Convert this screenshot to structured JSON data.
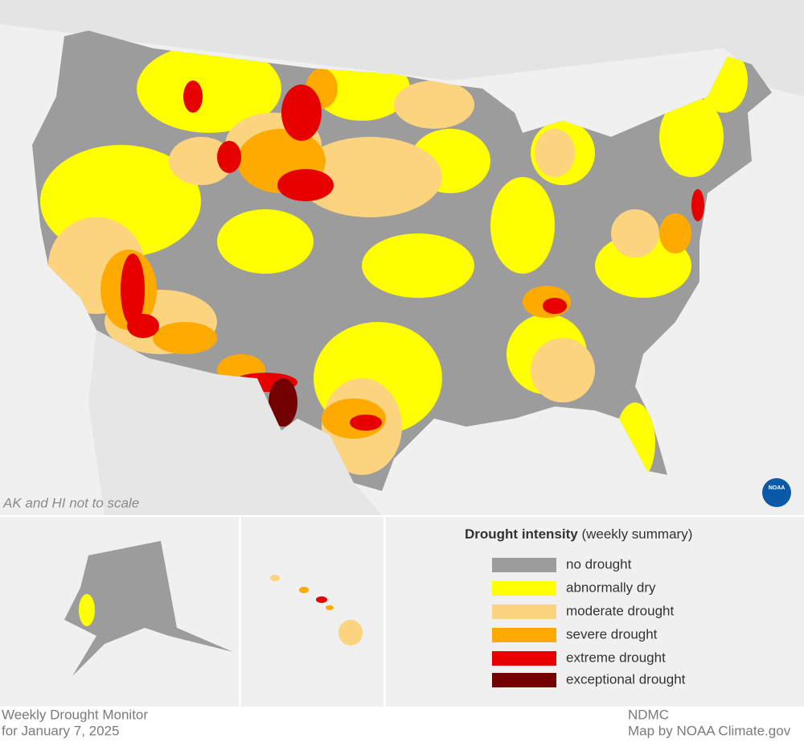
{
  "map": {
    "note": "AK and HI not to scale",
    "logo": "NOAA"
  },
  "legend": {
    "title": "Drought intensity",
    "subtitle": "(weekly summary)",
    "items": [
      {
        "label": "no drought",
        "color": "#9c9c9c"
      },
      {
        "label": "abnormally dry",
        "color": "#ffff00"
      },
      {
        "label": "moderate drought",
        "color": "#fcd37f"
      },
      {
        "label": "severe drought",
        "color": "#ffaa00"
      },
      {
        "label": "extreme drought",
        "color": "#e60000"
      },
      {
        "label": "exceptional drought",
        "color": "#730000"
      }
    ]
  },
  "footer": {
    "left": [
      "Weekly Drought Monitor",
      "for January 7, 2025"
    ],
    "right": [
      "NDMC",
      "Map by NOAA Climate.gov"
    ]
  }
}
